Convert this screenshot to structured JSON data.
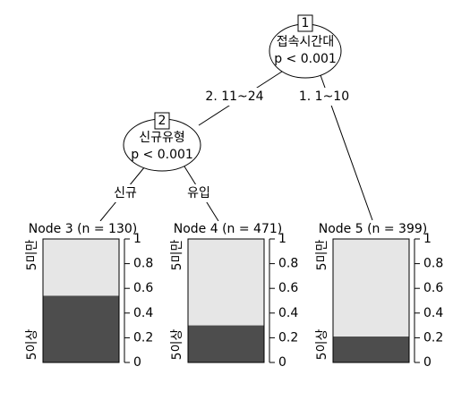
{
  "nodes": [
    {
      "id": "1",
      "label": "접속시간대",
      "p": "p < 0.001"
    },
    {
      "id": "2",
      "label": "신규유형",
      "p": "p < 0.001"
    }
  ],
  "edges": [
    {
      "label": "2. 11~24"
    },
    {
      "label": "1. 1~10"
    },
    {
      "label": "신규"
    },
    {
      "label": "유입"
    }
  ],
  "leaf_axis": {
    "ylim": [
      0,
      1
    ],
    "yticks": [
      0,
      0.2,
      0.4,
      0.6,
      0.8,
      1
    ],
    "top_label": "5미만",
    "bottom_label": "5이상"
  },
  "leaves": [
    {
      "title": "Node 3 (n = 130)",
      "value": 0.54
    },
    {
      "title": "Node 4 (n = 471)",
      "value": 0.3
    },
    {
      "title": "Node 5 (n = 399)",
      "value": 0.21
    }
  ]
}
